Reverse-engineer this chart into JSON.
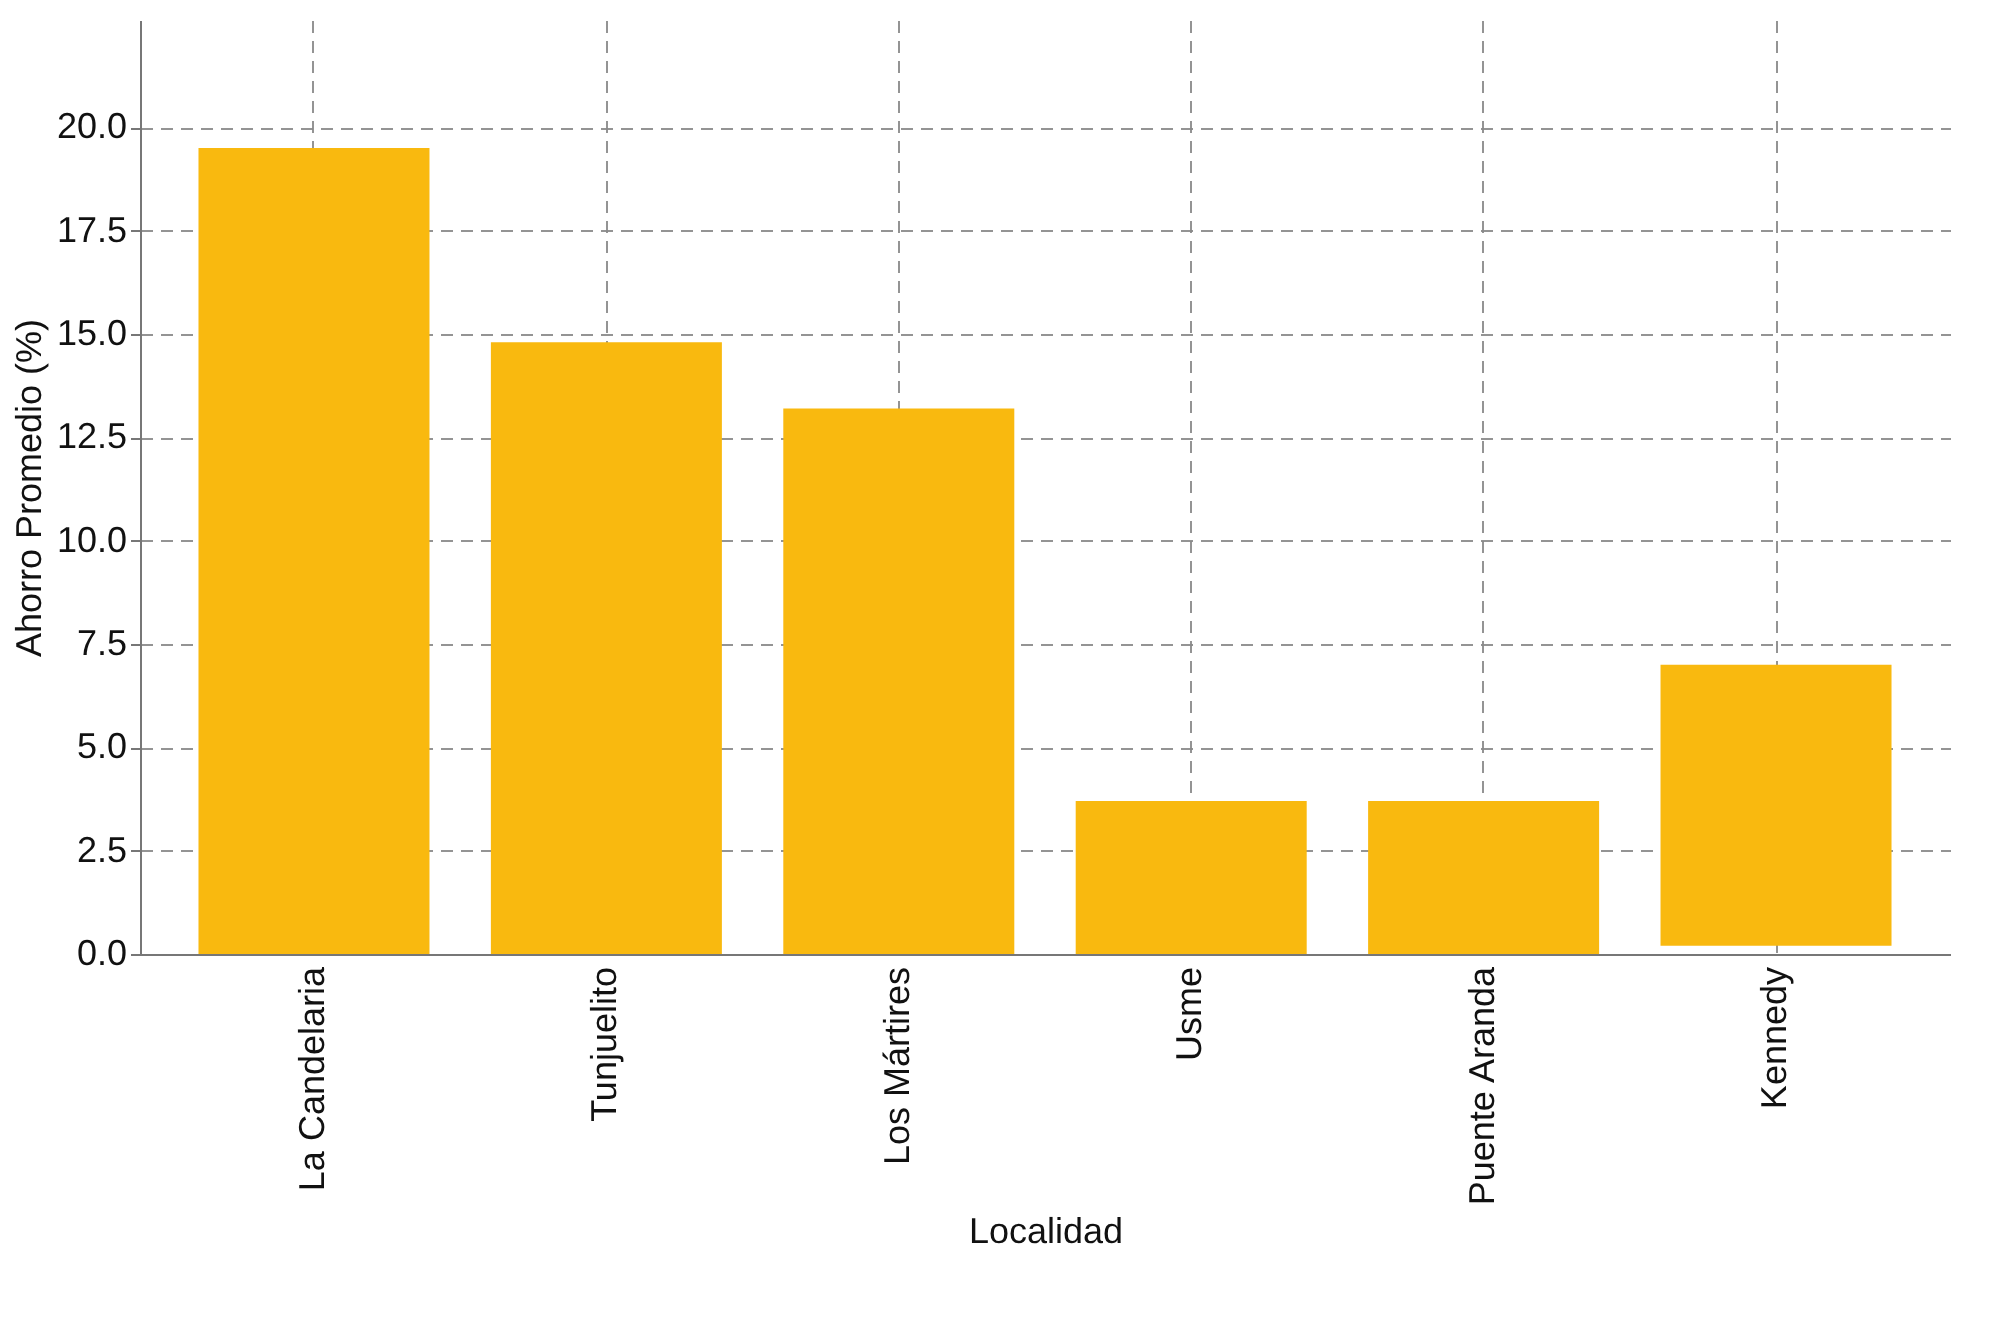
{
  "chart_data": {
    "type": "bar",
    "xlabel": "Localidad",
    "ylabel": "Ahorro Promedio (%)",
    "categories": [
      "La Candelaria",
      "Tunjuelito",
      "Los Mártires",
      "Usme",
      "Puente Aranda",
      "Kennedy"
    ],
    "values": [
      19.5,
      14.8,
      13.2,
      3.7,
      3.7,
      6.8
    ],
    "base": [
      0,
      0,
      0,
      0,
      0,
      0.2
    ],
    "color": "#f9b90f",
    "ylim": [
      0,
      22.6
    ],
    "yticks": [
      {
        "value": 0,
        "label": "0.0"
      },
      2.5,
      {
        "value": 5,
        "label": "5.0"
      },
      7.5,
      {
        "value": 10,
        "label": "10.0"
      },
      12.5,
      {
        "value": 15,
        "label": "15.0"
      },
      17.5,
      {
        "value": 20,
        "label": "20.0"
      }
    ],
    "grid": true
  }
}
